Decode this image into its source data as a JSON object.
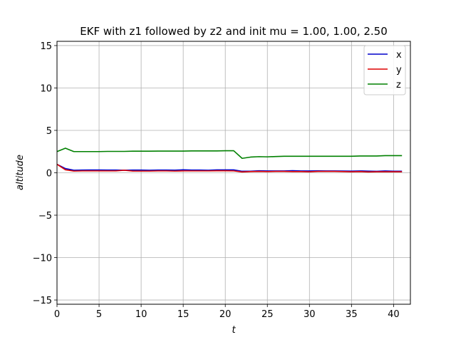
{
  "chart_data": {
    "type": "line",
    "title": "EKF with z1 followed by z2 and init mu = 1.00, 1.00, 2.50",
    "xlabel": "t",
    "ylabel": "altitude",
    "xlim": [
      0,
      42
    ],
    "ylim": [
      -15.5,
      15.5
    ],
    "xticks": [
      0,
      5,
      10,
      15,
      20,
      25,
      30,
      35,
      40
    ],
    "yticks": [
      -15,
      -10,
      -5,
      0,
      5,
      10,
      15
    ],
    "grid": true,
    "legend_position": "top-right",
    "x": [
      0,
      1,
      2,
      3,
      4,
      5,
      6,
      7,
      8,
      9,
      10,
      11,
      12,
      13,
      14,
      15,
      16,
      17,
      18,
      19,
      20,
      21,
      22,
      23,
      24,
      25,
      26,
      27,
      28,
      29,
      30,
      31,
      32,
      33,
      34,
      35,
      36,
      37,
      38,
      39,
      40,
      41
    ],
    "series": [
      {
        "name": "x",
        "color": "#0000cc",
        "values": [
          1.0,
          0.5,
          0.3,
          0.32,
          0.33,
          0.33,
          0.32,
          0.32,
          0.3,
          0.32,
          0.32,
          0.3,
          0.32,
          0.32,
          0.31,
          0.35,
          0.32,
          0.32,
          0.3,
          0.34,
          0.34,
          0.34,
          0.18,
          0.18,
          0.24,
          0.22,
          0.22,
          0.22,
          0.25,
          0.22,
          0.22,
          0.23,
          0.22,
          0.22,
          0.21,
          0.2,
          0.22,
          0.2,
          0.17,
          0.22,
          0.18,
          0.18
        ]
      },
      {
        "name": "y",
        "color": "#dd0000",
        "values": [
          1.0,
          0.35,
          0.2,
          0.22,
          0.22,
          0.22,
          0.22,
          0.22,
          0.3,
          0.2,
          0.2,
          0.2,
          0.22,
          0.22,
          0.2,
          0.22,
          0.22,
          0.22,
          0.22,
          0.24,
          0.24,
          0.22,
          0.1,
          0.14,
          0.16,
          0.14,
          0.16,
          0.16,
          0.14,
          0.14,
          0.12,
          0.16,
          0.16,
          0.16,
          0.14,
          0.12,
          0.14,
          0.1,
          0.12,
          0.12,
          0.12,
          0.12
        ]
      },
      {
        "name": "z",
        "color": "#008000",
        "values": [
          2.5,
          2.9,
          2.5,
          2.5,
          2.5,
          2.5,
          2.52,
          2.52,
          2.52,
          2.55,
          2.55,
          2.55,
          2.56,
          2.56,
          2.56,
          2.56,
          2.58,
          2.58,
          2.58,
          2.58,
          2.6,
          2.6,
          1.7,
          1.85,
          1.9,
          1.88,
          1.92,
          1.95,
          1.95,
          1.95,
          1.95,
          1.95,
          1.95,
          1.95,
          1.95,
          1.95,
          1.98,
          1.98,
          1.98,
          2.02,
          2.02,
          2.02
        ]
      }
    ]
  }
}
